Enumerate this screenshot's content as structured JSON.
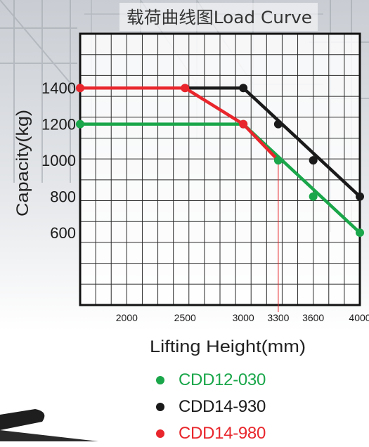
{
  "chart_data": {
    "type": "line",
    "title": "载荷曲线图Load Curve",
    "xlabel": "Lifting Height(mm)",
    "ylabel": "Capacity(kg)",
    "x_ticks": [
      2000,
      2500,
      3000,
      3300,
      3600,
      4000
    ],
    "y_ticks": [
      600,
      800,
      1000,
      1200,
      1400
    ],
    "xlim": [
      1600,
      4000
    ],
    "ylim": [
      200,
      1700
    ],
    "grid": true,
    "legend_position": "bottom",
    "series": [
      {
        "name": "CDD12-030",
        "color": "#1aa64a",
        "points": [
          [
            1600,
            1200
          ],
          [
            3000,
            1200
          ],
          [
            4000,
            600
          ]
        ],
        "markers": [
          [
            1600,
            1200
          ],
          [
            3000,
            1200
          ],
          [
            3300,
            1000
          ],
          [
            3600,
            800
          ],
          [
            4000,
            600
          ]
        ]
      },
      {
        "name": "CDD14-930",
        "color": "#1a1a1a",
        "points": [
          [
            1600,
            1400
          ],
          [
            3000,
            1400
          ],
          [
            4000,
            800
          ]
        ],
        "markers": [
          [
            3000,
            1400
          ],
          [
            3300,
            1200
          ],
          [
            3600,
            1000
          ],
          [
            4000,
            800
          ]
        ]
      },
      {
        "name": "CDD14-980",
        "color": "#e8262c",
        "points": [
          [
            1600,
            1400
          ],
          [
            2500,
            1400
          ],
          [
            3000,
            1200
          ],
          [
            3300,
            1000
          ]
        ],
        "markers": [
          [
            1600,
            1400
          ],
          [
            2500,
            1400
          ],
          [
            3000,
            1200
          ]
        ]
      }
    ],
    "reference_line_x": 3300
  }
}
